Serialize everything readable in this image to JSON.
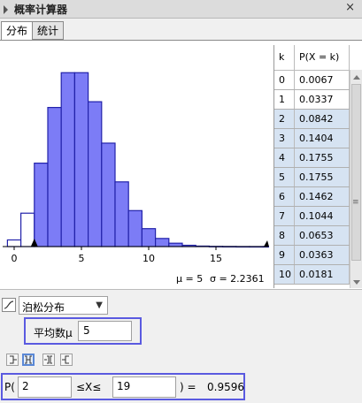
{
  "window": {
    "title": "概率计算器",
    "close": "×"
  },
  "tabs": [
    {
      "label": "分布"
    },
    {
      "label": "统计"
    }
  ],
  "chart_data": {
    "type": "bar",
    "distribution": "poisson",
    "x": [
      0,
      1,
      2,
      3,
      4,
      5,
      6,
      7,
      8,
      9,
      10,
      11,
      12,
      13,
      14,
      15,
      16,
      17,
      18,
      19
    ],
    "values": [
      0.0067,
      0.0337,
      0.0842,
      0.1404,
      0.1755,
      0.1755,
      0.1462,
      0.1044,
      0.0653,
      0.0363,
      0.0181,
      0.0082,
      0.0034,
      0.0013,
      0.0005,
      0.0002,
      0.0001,
      2e-05,
      5e-06,
      1e-06
    ],
    "highlight_range": [
      2,
      19
    ],
    "xticks": [
      "0",
      "5",
      "10",
      "15"
    ],
    "xlim": [
      -1.5,
      19
    ],
    "ylim": [
      0,
      0.19
    ],
    "highlight_color": "#7c7cf6",
    "stats": {
      "mu": "μ = 5",
      "sigma": "σ = 2.2361"
    }
  },
  "table": {
    "headers": [
      "k",
      "P(X = k)"
    ],
    "rows": [
      {
        "k": "0",
        "p": "0.0067",
        "sel": false
      },
      {
        "k": "1",
        "p": "0.0337",
        "sel": false
      },
      {
        "k": "2",
        "p": "0.0842",
        "sel": true
      },
      {
        "k": "3",
        "p": "0.1404",
        "sel": true
      },
      {
        "k": "4",
        "p": "0.1755",
        "sel": true
      },
      {
        "k": "5",
        "p": "0.1755",
        "sel": true
      },
      {
        "k": "6",
        "p": "0.1462",
        "sel": true
      },
      {
        "k": "7",
        "p": "0.1044",
        "sel": true
      },
      {
        "k": "8",
        "p": "0.0653",
        "sel": true
      },
      {
        "k": "9",
        "p": "0.0363",
        "sel": true
      },
      {
        "k": "10",
        "p": "0.0181",
        "sel": true
      }
    ]
  },
  "controls": {
    "distribution": "泊松分布",
    "param_label": "平均数μ",
    "param_value": "5",
    "prob": {
      "prefix": "P(",
      "low": "2",
      "middle": "≤X≤",
      "high": "19",
      "equals": ") =",
      "result": "0.9596"
    }
  }
}
